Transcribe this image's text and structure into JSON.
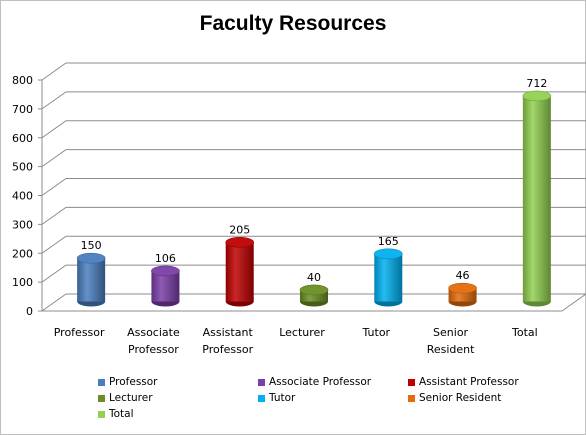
{
  "chart_data": {
    "type": "bar",
    "title": "Faculty Resources",
    "categories": [
      "Professor",
      "Associate Professor",
      "Assistant Professor",
      "Lecturer",
      "Tutor",
      "Senior Resident",
      "Total"
    ],
    "category_lines": [
      [
        "Professor"
      ],
      [
        "Associate",
        "Professor"
      ],
      [
        "Assistant",
        "Professor"
      ],
      [
        "Lecturer"
      ],
      [
        "Tutor"
      ],
      [
        "Senior",
        "Resident"
      ],
      [
        "Total"
      ]
    ],
    "values": [
      150,
      106,
      205,
      40,
      165,
      46,
      712
    ],
    "data_labels": [
      "150",
      "106",
      "205",
      "40",
      "165",
      "46",
      "712"
    ],
    "colors": [
      "#4a7ebf",
      "#7a3ea8",
      "#c00000",
      "#6b8e23",
      "#00b0f0",
      "#e46c0a",
      "#92d050"
    ],
    "ylim": [
      0,
      800
    ],
    "yticks": [
      0,
      100,
      200,
      300,
      400,
      500,
      600,
      700,
      800
    ],
    "xlabel": "",
    "ylabel": "",
    "grid": true,
    "style": "3d-cylinder",
    "legend": {
      "placement": "bottom",
      "entries": [
        "Professor",
        "Associate Professor",
        "Assistant Professor",
        "Lecturer",
        "Tutor",
        "Senior Resident",
        "Total"
      ]
    }
  }
}
